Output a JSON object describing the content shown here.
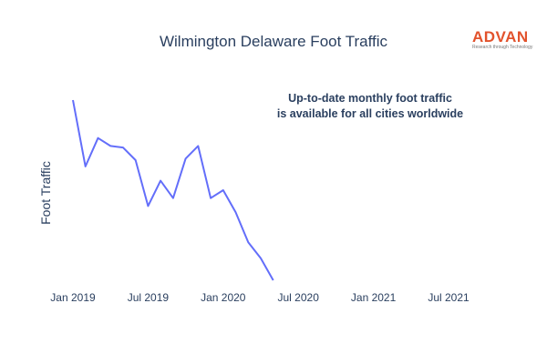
{
  "logo": {
    "word": "ADVAN",
    "tagline": "Research through Technology"
  },
  "chart_data": {
    "type": "line",
    "title": "Wilmington Delaware Foot Traffic",
    "xlabel": "",
    "ylabel": "Foot Traffic",
    "x_tick_labels": [
      "Jan 2019",
      "Jul 2019",
      "Jan 2020",
      "Jul 2020",
      "Jan 2021",
      "Jul 2021"
    ],
    "x_ticks": [
      "2019-01",
      "2019-07",
      "2020-01",
      "2020-07",
      "2021-01",
      "2021-07"
    ],
    "xlim": [
      "2018-12",
      "2021-10"
    ],
    "y_tick_labels_visible": false,
    "grid": false,
    "annotation": [
      "Up-to-date monthly foot traffic",
      "is available for all cities worldwide"
    ],
    "series": [
      {
        "color": "#636efa",
        "x": [
          "2019-01",
          "2019-02",
          "2019-03",
          "2019-04",
          "2019-05",
          "2019-06",
          "2019-07",
          "2019-08",
          "2019-09",
          "2019-10",
          "2019-11",
          "2019-12",
          "2020-01",
          "2020-02",
          "2020-03",
          "2020-04",
          "2020-05"
        ],
        "y": [
          100,
          58,
          76,
          71,
          70,
          62,
          33,
          49,
          38,
          63,
          71,
          38,
          43,
          29,
          10,
          0,
          -14
        ]
      }
    ]
  }
}
